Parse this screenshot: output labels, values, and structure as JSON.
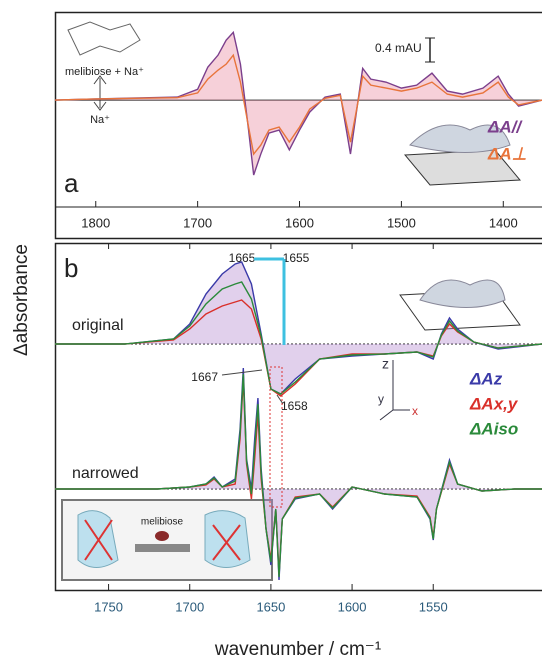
{
  "chart_data": [
    {
      "type": "line",
      "panel_label": "a",
      "ylabel": "Δabsorbance",
      "annotations": [
        "0.4 mAU",
        "melibiose + Na⁺",
        "Na⁺"
      ],
      "xlim": [
        1840,
        1362
      ],
      "ylim": [
        -1.8,
        1.47
      ],
      "xticks": [
        1800,
        1700,
        1600,
        1500,
        1400
      ],
      "x": [
        1840,
        1800,
        1720,
        1700,
        1690,
        1680,
        1672,
        1665,
        1658,
        1650,
        1645,
        1638,
        1630,
        1620,
        1610,
        1600,
        1590,
        1575,
        1560,
        1550,
        1545,
        1538,
        1530,
        1515,
        1500,
        1485,
        1470,
        1455,
        1440,
        1420,
        1405,
        1395,
        1385,
        1362
      ],
      "series": [
        {
          "name": "ΔA//",
          "color": "#7b3f8c",
          "values": [
            0,
            0.02,
            0.05,
            0.18,
            0.55,
            0.75,
            1.0,
            1.13,
            0.6,
            -0.5,
            -1.25,
            -0.9,
            -0.55,
            -0.5,
            -0.83,
            -0.5,
            -0.2,
            0.05,
            0.1,
            -0.9,
            -0.3,
            0.53,
            0.35,
            0.3,
            0.2,
            0.25,
            0.45,
            0.15,
            0.1,
            0.2,
            0.4,
            0.1,
            -0.1,
            0
          ]
        },
        {
          "name": "ΔA⊥",
          "color": "#e8743b",
          "values": [
            0,
            0.02,
            0.04,
            0.12,
            0.35,
            0.5,
            0.6,
            0.75,
            0.3,
            -0.45,
            -0.9,
            -0.75,
            -0.5,
            -0.45,
            -0.7,
            -0.45,
            -0.15,
            0.03,
            0.08,
            -0.7,
            -0.25,
            0.4,
            0.25,
            0.2,
            0.15,
            0.2,
            0.3,
            0.1,
            0.05,
            0.12,
            0.3,
            0.05,
            -0.08,
            0
          ]
        }
      ]
    },
    {
      "type": "line",
      "panel_label": "b",
      "annotations": [
        "1665",
        "1655",
        "original"
      ],
      "xlim": [
        1783,
        1483
      ],
      "ylim": [
        -2.46,
        1.01
      ],
      "x": [
        1783,
        1740,
        1710,
        1700,
        1690,
        1680,
        1672,
        1668,
        1662,
        1656,
        1650,
        1644,
        1635,
        1620,
        1600,
        1580,
        1560,
        1550,
        1545,
        1540,
        1535,
        1525,
        1510,
        1483
      ],
      "series": [
        {
          "name": "ΔAz",
          "color": "#3a3aa8",
          "values": [
            0,
            0,
            0.05,
            0.2,
            0.5,
            0.7,
            0.8,
            0.82,
            0.6,
            0.1,
            -0.45,
            -0.5,
            -0.35,
            -0.15,
            -0.12,
            -0.1,
            -0.08,
            -0.15,
            0.1,
            0.26,
            0.15,
            0.02,
            -0.05,
            0
          ]
        },
        {
          "name": "ΔAx,y",
          "color": "#d9302a",
          "values": [
            0,
            0,
            0.04,
            0.15,
            0.3,
            0.38,
            0.42,
            0.44,
            0.35,
            0.05,
            -0.45,
            -0.52,
            -0.4,
            -0.15,
            -0.1,
            -0.1,
            -0.08,
            -0.12,
            0.08,
            0.2,
            0.12,
            0.02,
            -0.04,
            0
          ]
        },
        {
          "name": "ΔAiso",
          "color": "#2a8a3a",
          "values": [
            0,
            0,
            0.05,
            0.18,
            0.4,
            0.55,
            0.6,
            0.62,
            0.45,
            0.08,
            -0.45,
            -0.5,
            -0.38,
            -0.15,
            -0.11,
            -0.1,
            -0.08,
            -0.13,
            0.09,
            0.23,
            0.13,
            0.02,
            -0.04,
            0
          ]
        }
      ]
    },
    {
      "type": "line",
      "xlabel": "wavenumber / cm⁻¹",
      "annotations": [
        "1667",
        "1658",
        "narrowed",
        "melibiose"
      ],
      "xlim": [
        1783,
        1483
      ],
      "ylim": [
        -1.01,
        2.46
      ],
      "xticks": [
        1750,
        1700,
        1650,
        1600,
        1550
      ],
      "x": [
        1783,
        1720,
        1700,
        1690,
        1685,
        1680,
        1672,
        1669,
        1667,
        1665,
        1662,
        1660,
        1658,
        1656,
        1653,
        1650,
        1647,
        1645,
        1643,
        1635,
        1620,
        1612,
        1600,
        1580,
        1560,
        1552,
        1550,
        1548,
        1540,
        1535,
        1520,
        1500,
        1483
      ],
      "series": [
        {
          "color": "#3a3aa8",
          "values": [
            0,
            0,
            0.02,
            0.05,
            0.12,
            0.02,
            0.1,
            0.6,
            1.21,
            0.3,
            0,
            0.5,
            0.91,
            0.2,
            -0.4,
            -0.76,
            -0.2,
            -0.91,
            -0.3,
            -0.1,
            -0.05,
            -0.2,
            0.02,
            -0.05,
            -0.08,
            -0.3,
            -0.51,
            -0.2,
            0.29,
            0.05,
            -0.02,
            0,
            0
          ]
        },
        {
          "color": "#d9302a",
          "values": [
            0,
            0,
            0.02,
            0.04,
            0.1,
            0.02,
            0.05,
            0.5,
            1.1,
            0.25,
            -0.1,
            0.3,
            0.75,
            0.1,
            -0.4,
            -0.7,
            -0.2,
            -0.85,
            -0.3,
            -0.08,
            -0.05,
            -0.18,
            0.02,
            -0.05,
            -0.07,
            -0.28,
            -0.48,
            -0.2,
            0.25,
            0.05,
            -0.02,
            0,
            0
          ]
        },
        {
          "color": "#2a8a3a",
          "values": [
            0,
            0,
            0.02,
            0.05,
            0.11,
            0.02,
            0.08,
            0.55,
            1.15,
            0.28,
            -0.05,
            0.4,
            0.85,
            0.15,
            -0.4,
            -0.73,
            -0.2,
            -0.88,
            -0.3,
            -0.09,
            -0.05,
            -0.19,
            0.02,
            -0.05,
            -0.08,
            -0.29,
            -0.5,
            -0.2,
            0.27,
            0.05,
            -0.02,
            0,
            0
          ]
        }
      ]
    }
  ]
}
